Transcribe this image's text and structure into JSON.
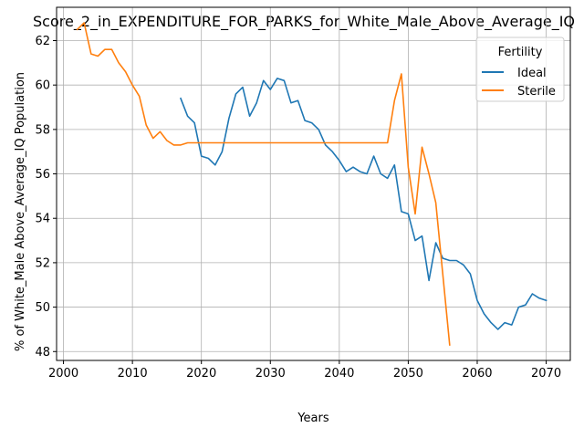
{
  "chart_data": {
    "type": "line",
    "title": "Score_2_in_EXPENDITURE_FOR_PARKS_for_White_Male_Above_Average_IQ",
    "xlabel": "Years",
    "ylabel": "% of White_Male Above_Average_IQ Population",
    "xlim": [
      1999,
      2073.5
    ],
    "ylim": [
      47.6,
      63.5
    ],
    "xticks": [
      2000,
      2010,
      2020,
      2030,
      2040,
      2050,
      2060,
      2070
    ],
    "yticks": [
      48,
      50,
      52,
      54,
      56,
      58,
      60,
      62
    ],
    "grid": true,
    "legend": {
      "title": "Fertility",
      "placement": "top-right"
    },
    "series": [
      {
        "name": "Ideal",
        "color": "#1f77b4",
        "x": [
          2017,
          2018,
          2019,
          2020,
          2021,
          2022,
          2023,
          2024,
          2025,
          2026,
          2027,
          2028,
          2029,
          2030,
          2031,
          2032,
          2033,
          2034,
          2035,
          2036,
          2037,
          2038,
          2039,
          2040,
          2041,
          2042,
          2043,
          2044,
          2045,
          2046,
          2047,
          2048,
          2049,
          2050,
          2051,
          2052,
          2053,
          2054,
          2055,
          2056,
          2057,
          2058,
          2059,
          2060,
          2061,
          2062,
          2063,
          2064,
          2065,
          2066,
          2067,
          2068,
          2069,
          2070
        ],
        "y": [
          59.4,
          58.6,
          58.3,
          56.8,
          56.7,
          56.4,
          57.0,
          58.5,
          59.6,
          59.9,
          58.6,
          59.2,
          60.2,
          59.8,
          60.3,
          60.2,
          59.2,
          59.3,
          58.4,
          58.3,
          58.0,
          57.3,
          57.0,
          56.6,
          56.1,
          56.3,
          56.1,
          56.0,
          56.8,
          56.0,
          55.8,
          56.4,
          54.3,
          54.2,
          53.0,
          53.2,
          51.2,
          52.9,
          52.2,
          52.1,
          52.1,
          51.9,
          51.5,
          50.3,
          49.7,
          49.3,
          49.0,
          49.3,
          49.2,
          50.0,
          50.1,
          50.6,
          50.4,
          50.3
        ]
      },
      {
        "name": "Sterile",
        "color": "#ff7f0e",
        "x": [
          2002,
          2003,
          2004,
          2005,
          2006,
          2007,
          2008,
          2009,
          2010,
          2011,
          2012,
          2013,
          2014,
          2015,
          2016,
          2017,
          2018,
          2019,
          2020,
          2021,
          2022,
          2023,
          2024,
          2025,
          2026,
          2027,
          2028,
          2029,
          2030,
          2031,
          2032,
          2033,
          2034,
          2035,
          2036,
          2037,
          2038,
          2039,
          2040,
          2041,
          2042,
          2043,
          2044,
          2045,
          2046,
          2047,
          2048,
          2049,
          2050,
          2051,
          2052,
          2053,
          2054,
          2055,
          2056
        ],
        "y": [
          62.5,
          62.8,
          61.4,
          61.3,
          61.6,
          61.6,
          61.0,
          60.6,
          60.0,
          59.5,
          58.2,
          57.6,
          57.9,
          57.5,
          57.3,
          57.3,
          57.4,
          57.4,
          57.4,
          57.4,
          57.4,
          57.4,
          57.4,
          57.4,
          57.4,
          57.4,
          57.4,
          57.4,
          57.4,
          57.4,
          57.4,
          57.4,
          57.4,
          57.4,
          57.4,
          57.4,
          57.4,
          57.4,
          57.4,
          57.4,
          57.4,
          57.4,
          57.4,
          57.4,
          57.4,
          57.4,
          59.3,
          60.5,
          56.3,
          54.2,
          57.2,
          56.0,
          54.7,
          51.5,
          48.3
        ]
      }
    ]
  }
}
